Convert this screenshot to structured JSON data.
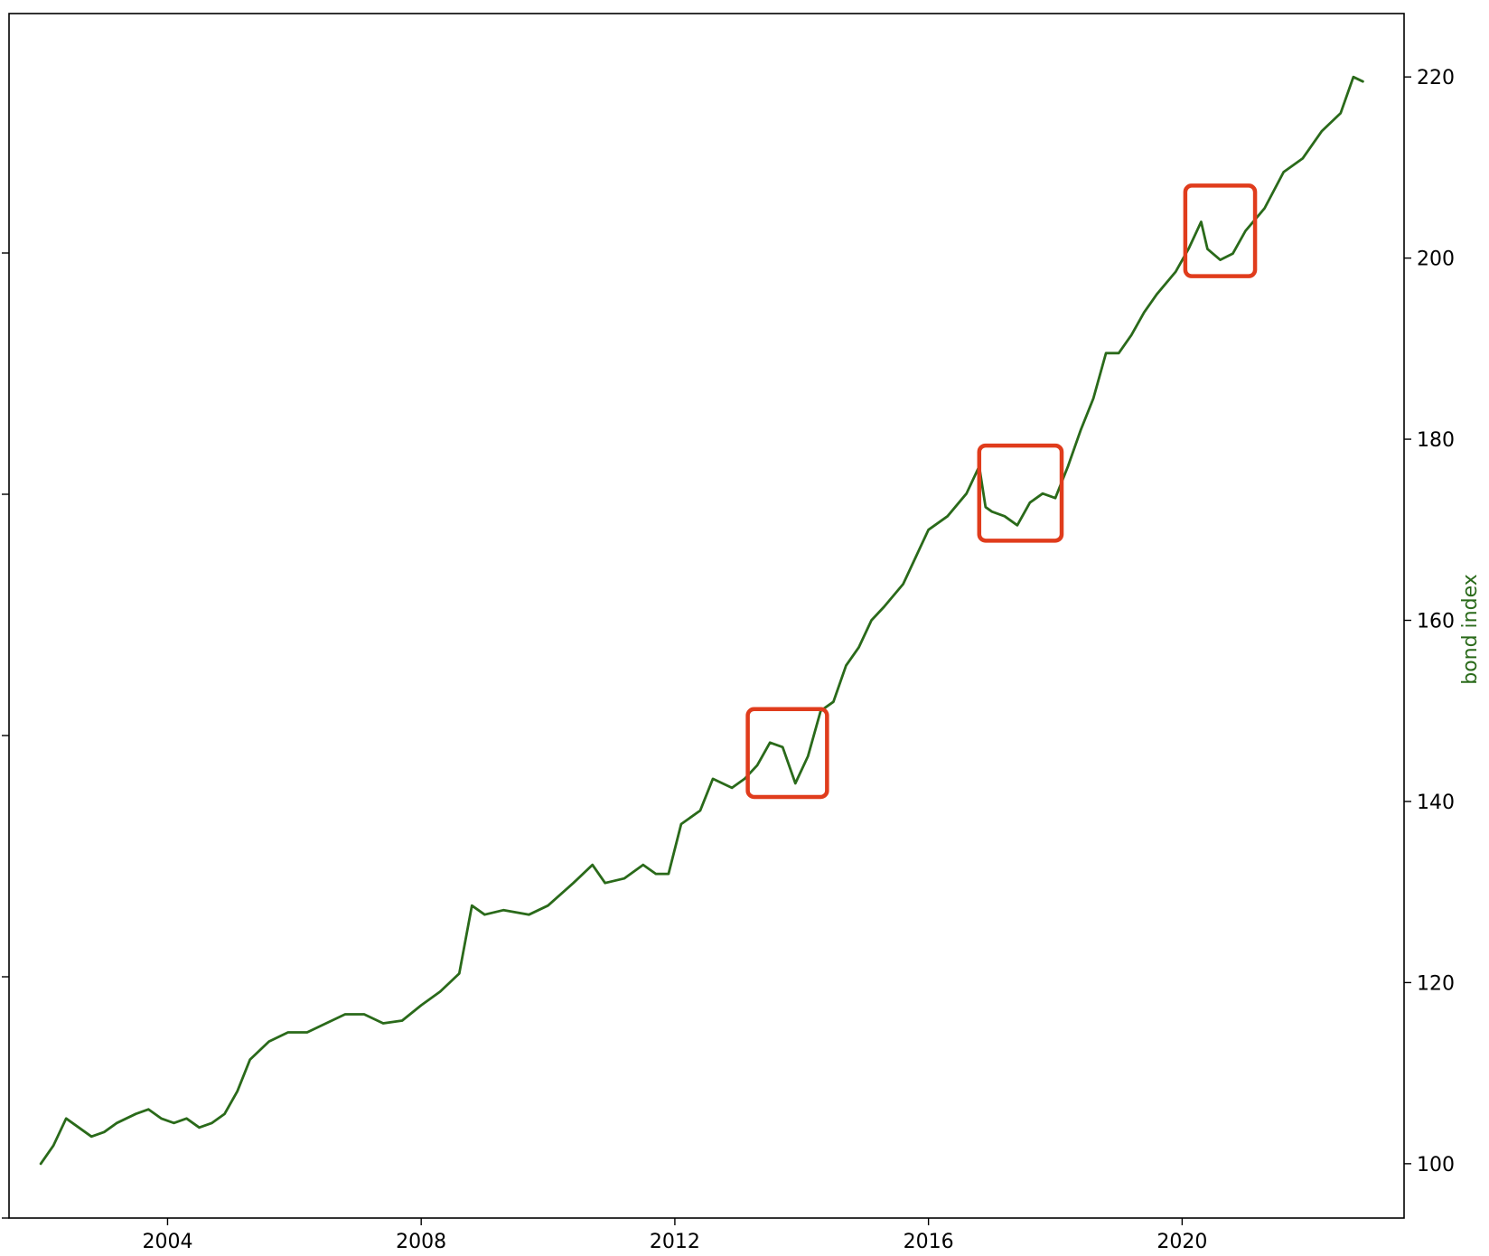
{
  "chart_data": {
    "type": "line",
    "title": "",
    "xlabel": "",
    "ylabel_right": "bond index",
    "xlim": [
      2001.5,
      2023.5
    ],
    "ylim_right": [
      94,
      227
    ],
    "x_ticks": [
      2004,
      2008,
      2012,
      2016,
      2020
    ],
    "x_tick_labels": [
      "2004",
      "2008",
      "2012",
      "2016",
      "2020"
    ],
    "y_right_ticks": [
      100,
      120,
      140,
      160,
      180,
      200,
      220
    ],
    "y_right_tick_labels": [
      "100",
      "120",
      "140",
      "160",
      "180",
      "200",
      "220"
    ],
    "left_axis_tick_count": 6,
    "grid": false,
    "series": [
      {
        "name": "",
        "color": "#2a6a1a",
        "x": [
          2002.0,
          2002.2,
          2002.4,
          2002.6,
          2002.8,
          2003.0,
          2003.2,
          2003.5,
          2003.7,
          2003.9,
          2004.1,
          2004.3,
          2004.5,
          2004.7,
          2004.9,
          2005.1,
          2005.3,
          2005.6,
          2005.9,
          2006.2,
          2006.5,
          2006.8,
          2007.1,
          2007.4,
          2007.7,
          2008.0,
          2008.3,
          2008.6,
          2008.8,
          2009.0,
          2009.3,
          2009.7,
          2010.0,
          2010.4,
          2010.7,
          2010.9,
          2011.2,
          2011.5,
          2011.7,
          2011.9,
          2012.1,
          2012.4,
          2012.6,
          2012.9,
          2013.1,
          2013.3,
          2013.5,
          2013.7,
          2013.9,
          2014.1,
          2014.3,
          2014.5,
          2014.7,
          2014.9,
          2015.1,
          2015.3,
          2015.6,
          2015.8,
          2016.0,
          2016.3,
          2016.6,
          2016.8,
          2016.9,
          2017.0,
          2017.2,
          2017.4,
          2017.6,
          2017.8,
          2018.0,
          2018.2,
          2018.4,
          2018.6,
          2018.8,
          2019.0,
          2019.2,
          2019.4,
          2019.6,
          2019.9,
          2020.1,
          2020.3,
          2020.4,
          2020.6,
          2020.8,
          2021.0,
          2021.3,
          2021.6,
          2021.9,
          2022.2,
          2022.5,
          2022.7,
          2022.85
        ],
        "values": [
          100.0,
          102.0,
          105.0,
          104.0,
          103.0,
          103.5,
          104.5,
          105.5,
          106.0,
          105.0,
          104.5,
          105.0,
          104.0,
          104.5,
          105.5,
          108.0,
          111.5,
          113.5,
          114.5,
          114.5,
          115.5,
          116.5,
          116.5,
          115.5,
          115.8,
          117.5,
          119.0,
          121.0,
          128.5,
          127.5,
          128.0,
          127.5,
          128.5,
          131.0,
          133.0,
          131.0,
          131.5,
          133.0,
          132.0,
          132.0,
          137.5,
          139.0,
          142.5,
          141.5,
          142.5,
          144.0,
          146.5,
          146.0,
          142.0,
          145.0,
          150.0,
          151.0,
          155.0,
          157.0,
          160.0,
          161.5,
          164.0,
          167.0,
          170.0,
          171.5,
          174.0,
          177.0,
          172.5,
          172.0,
          171.5,
          170.5,
          173.0,
          174.0,
          173.5,
          177.0,
          181.0,
          184.5,
          189.5,
          189.5,
          191.5,
          194.0,
          196.0,
          198.5,
          201.0,
          204.0,
          201.0,
          199.8,
          200.5,
          203.0,
          205.5,
          209.5,
          211.0,
          214.0,
          216.0,
          220.0,
          219.5
        ]
      }
    ],
    "highlight_boxes": [
      {
        "x0": 2013.15,
        "x1": 2014.4,
        "y0": 140.5,
        "y1": 150.2
      },
      {
        "x0": 2016.8,
        "x1": 2018.1,
        "y0": 168.8,
        "y1": 179.3
      },
      {
        "x0": 2020.05,
        "x1": 2021.15,
        "y0": 198.0,
        "y1": 208.0
      }
    ],
    "highlight_color": "#e03c1c"
  }
}
